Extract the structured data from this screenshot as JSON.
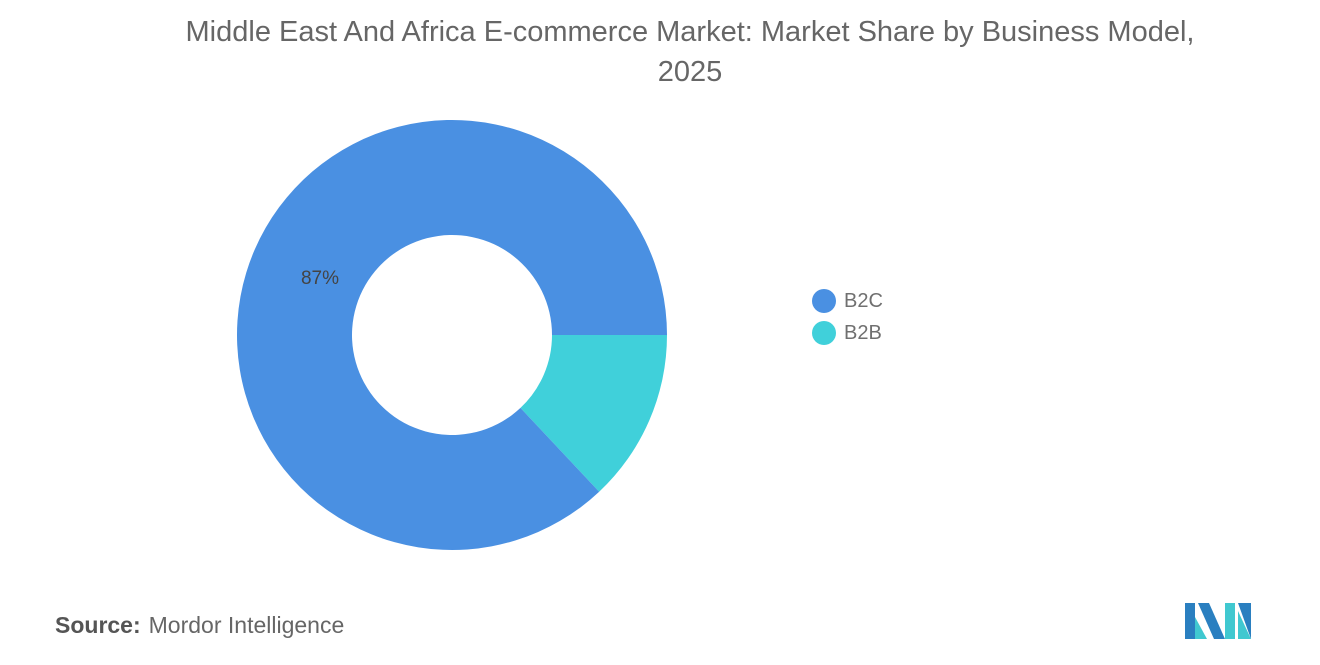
{
  "chart_data": {
    "type": "pie",
    "subtype": "donut",
    "title": "Middle East And Africa E-commerce Market: Market Share by Business Model, 2025",
    "title_lines": [
      "Middle East And Africa E-commerce Market: Market Share by Business Model,",
      "2025"
    ],
    "slices": [
      {
        "name": "B2C",
        "value": 87,
        "label": "87%",
        "color": "#4a90e2"
      },
      {
        "name": "B2B",
        "value": 13,
        "label": "",
        "color": "#40d0da"
      }
    ],
    "legend_position": "right"
  },
  "source": {
    "label": "Source:",
    "value": "Mordor Intelligence"
  },
  "logo": {
    "text": "Mordor Intelligence",
    "colors": [
      "#2a7fc0",
      "#40c8d0"
    ]
  }
}
